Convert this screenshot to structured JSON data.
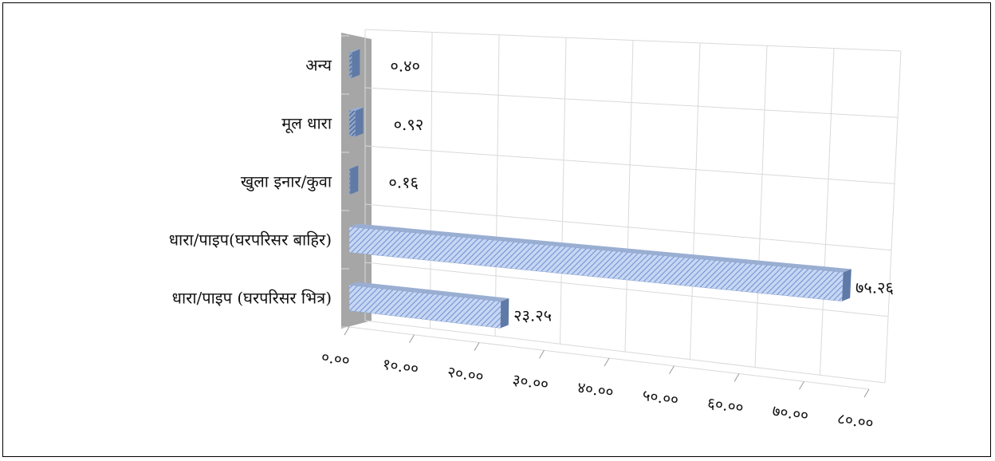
{
  "chart_data": {
    "type": "bar",
    "orientation": "horizontal",
    "categories": [
      "अन्य",
      "मूल धारा",
      "खुला इनार/कुवा",
      "धारा/पाइप(घरपरिसर बाहिर)",
      "धारा/पाइप (घरपरिसर भित्र)"
    ],
    "values": [
      0.4,
      0.92,
      0.16,
      75.26,
      23.25
    ],
    "value_labels": [
      "०.४०",
      "०.९२",
      "०.१६",
      "७५.२६",
      "२३.२५"
    ],
    "x_ticks": [
      "०.००",
      "१०.००",
      "२०.००",
      "३०.००",
      "४०.००",
      "५०.००",
      "६०.००",
      "७०.००",
      "८०.००"
    ],
    "xlim": [
      0,
      80
    ],
    "grid": true,
    "legend": "none",
    "style": "3d",
    "colors": {
      "bar_fill": "#b8ccef",
      "bar_stripe": "#6f8fcf",
      "bar_side": "#5f7aa6",
      "bar_top": "#9aaed2",
      "wall": "#a6a6a6",
      "grid": "#d9d9d9"
    }
  }
}
